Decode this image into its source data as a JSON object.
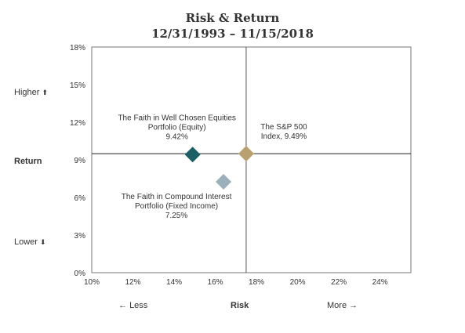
{
  "chart_data": {
    "type": "scatter",
    "title": "Risk & Return",
    "subtitle": "12/31/1993 – 11/15/2018",
    "xlabel": "Risk",
    "ylabel": "Return",
    "xlim": [
      10,
      25.5
    ],
    "ylim": [
      0,
      18
    ],
    "xticks": [
      10,
      12,
      14,
      16,
      18,
      20,
      22,
      24
    ],
    "yticks": [
      0,
      3,
      6,
      9,
      12,
      15,
      18
    ],
    "xtick_labels": [
      "10%",
      "12%",
      "14%",
      "16%",
      "18%",
      "20%",
      "22%",
      "24%"
    ],
    "ytick_labels": [
      "0%",
      "3%",
      "6%",
      "9%",
      "12%",
      "15%",
      "18%"
    ],
    "grid": false,
    "reference_lines": {
      "x": 17.5,
      "y": 9.49
    },
    "points": [
      {
        "label_lines": [
          "The Faith in Well Chosen Equities",
          "Portfolio (Equity)",
          "9.42%"
        ],
        "x": 14.9,
        "y": 9.42,
        "color": "#1b5e63"
      },
      {
        "label_lines": [
          "The S&P 500",
          "Index, 9.49%"
        ],
        "x": 17.5,
        "y": 9.49,
        "color": "#b8a070"
      },
      {
        "label_lines": [
          "The Faith in Compound Interest",
          "Portfolio (Fixed Income)",
          "7.25%"
        ],
        "x": 16.4,
        "y": 7.25,
        "color": "#9bb0bb"
      }
    ],
    "annotations": {
      "higher": "Higher",
      "return_label": "Return",
      "lower": "Lower",
      "less": "Less",
      "risk_label": "Risk",
      "more": "More"
    }
  }
}
